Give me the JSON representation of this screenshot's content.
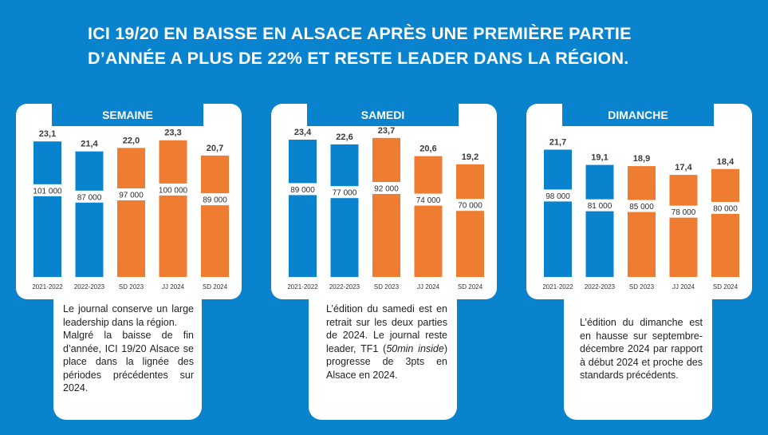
{
  "title": {
    "line1": "ICI 19/20 EN BAISSE EN ALSACE APRÈS UNE PREMIÈRE PARTIE",
    "line2": "D’ANNÉE A PLUS DE 22% ET RESTE LEADER DANS LA RÉGION."
  },
  "colors": {
    "background": "#0a83cf",
    "past": "#0a83cf",
    "recent": "#ef7d31",
    "panel": "#ffffff"
  },
  "chart_data": [
    {
      "type": "bar",
      "title": "SEMAINE",
      "categories": [
        "2021-2022",
        "2022-2023",
        "SD 2023",
        "JJ 2024",
        "SD 2024"
      ],
      "series": [
        {
          "values": [
            23.1,
            21.4,
            22.0,
            23.3,
            20.7
          ],
          "labels": [
            "23,1",
            "21,4",
            "22,0",
            "23,3",
            "20,7"
          ]
        },
        {
          "values": [
            101000,
            87000,
            97000,
            100000,
            89000
          ],
          "labels": [
            "101 000",
            "87 000",
            "97 000",
            "100 000",
            "89 000"
          ]
        }
      ],
      "bar_colors": [
        "#0a83cf",
        "#0a83cf",
        "#ef7d31",
        "#ef7d31",
        "#ef7d31"
      ]
    },
    {
      "type": "bar",
      "title": "SAMEDI",
      "categories": [
        "2021-2022",
        "2022-2023",
        "SD 2023",
        "JJ 2024",
        "SD 2024"
      ],
      "series": [
        {
          "values": [
            23.4,
            22.6,
            23.7,
            20.6,
            19.2
          ],
          "labels": [
            "23,4",
            "22,6",
            "23,7",
            "20,6",
            "19,2"
          ]
        },
        {
          "values": [
            89000,
            77000,
            92000,
            74000,
            70000
          ],
          "labels": [
            "89 000",
            "77 000",
            "92 000",
            "74 000",
            "70 000"
          ]
        }
      ],
      "bar_colors": [
        "#0a83cf",
        "#0a83cf",
        "#ef7d31",
        "#ef7d31",
        "#ef7d31"
      ]
    },
    {
      "type": "bar",
      "title": "DIMANCHE",
      "categories": [
        "2021-2022",
        "2022-2023",
        "SD 2023",
        "JJ 2024",
        "SD 2024"
      ],
      "series": [
        {
          "values": [
            21.7,
            19.1,
            18.9,
            17.4,
            18.4
          ],
          "labels": [
            "21,7",
            "19,1",
            "18,9",
            "17,4",
            "18,4"
          ]
        },
        {
          "values": [
            98000,
            81000,
            85000,
            78000,
            80000
          ],
          "labels": [
            "98 000",
            "81 000",
            "85 000",
            "78 000",
            "80 000"
          ]
        }
      ],
      "bar_colors": [
        "#0a83cf",
        "#0a83cf",
        "#ef7d31",
        "#ef7d31",
        "#ef7d31"
      ]
    }
  ],
  "captions": {
    "semaine": {
      "p1": "Le journal conserve un large leadership dans la région.",
      "p2": "Malgré la baisse de fin d’année, ICI 19/20 Alsace se place dans la lignée des périodes précédentes sur 2024."
    },
    "samedi": {
      "before": "L’édition du samedi est en retrait sur les deux parties de 2024. Le journal reste leader, TF1 (",
      "em": "50min inside",
      "after": ") progresse de 3pts en Alsace en 2024."
    },
    "dimanche": {
      "text": "L’édition du dimanche est en hausse sur septembre-décembre 2024 par rapport à début 2024 et proche des standards précédents."
    }
  }
}
